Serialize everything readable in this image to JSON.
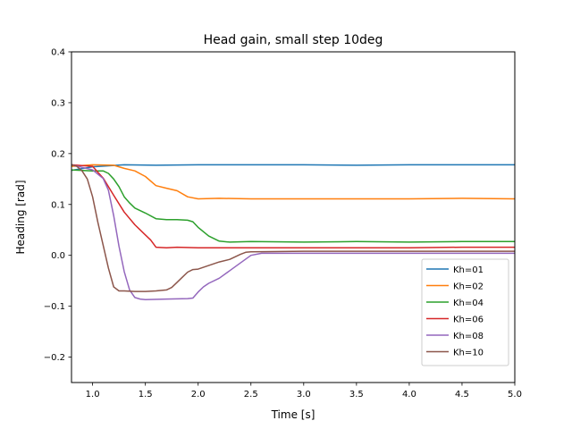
{
  "chart_data": {
    "type": "line",
    "title": "Head gain, small step 10deg",
    "xlabel": "Time [s]",
    "ylabel": "Heading [rad]",
    "xlim": [
      0.8,
      5.0
    ],
    "ylim": [
      -0.25,
      0.4
    ],
    "xticks": [
      "1.0",
      "1.5",
      "2.0",
      "2.5",
      "3.0",
      "3.5",
      "4.0",
      "4.5",
      "5.0"
    ],
    "yticks": [
      "−0.2",
      "−0.1",
      "0.0",
      "0.1",
      "0.2",
      "0.3",
      "0.4"
    ],
    "grid": false,
    "legend_position": "lower right",
    "series": [
      {
        "name": "Kh=01",
        "color": "#1f77b4",
        "x": [
          0.8,
          1.0,
          1.3,
          1.6,
          2.0,
          2.5,
          3.0,
          3.5,
          4.0,
          4.5,
          5.0
        ],
        "y": [
          0.167,
          0.174,
          0.178,
          0.177,
          0.178,
          0.178,
          0.178,
          0.177,
          0.178,
          0.178,
          0.178
        ]
      },
      {
        "name": "Kh=02",
        "color": "#ff7f0e",
        "x": [
          0.8,
          1.0,
          1.2,
          1.3,
          1.4,
          1.5,
          1.6,
          1.7,
          1.8,
          1.9,
          2.0,
          2.2,
          2.5,
          3.0,
          3.5,
          4.0,
          4.5,
          5.0
        ],
        "y": [
          0.175,
          0.178,
          0.177,
          0.171,
          0.166,
          0.155,
          0.137,
          0.132,
          0.127,
          0.115,
          0.111,
          0.112,
          0.111,
          0.111,
          0.111,
          0.111,
          0.112,
          0.111
        ]
      },
      {
        "name": "Kh=04",
        "color": "#2ca02c",
        "x": [
          0.8,
          1.0,
          1.1,
          1.15,
          1.2,
          1.25,
          1.3,
          1.35,
          1.4,
          1.5,
          1.6,
          1.7,
          1.8,
          1.9,
          1.95,
          2.0,
          2.1,
          2.2,
          2.3,
          2.5,
          3.0,
          3.5,
          4.0,
          4.5,
          5.0
        ],
        "y": [
          0.168,
          0.166,
          0.166,
          0.161,
          0.15,
          0.135,
          0.115,
          0.103,
          0.093,
          0.083,
          0.072,
          0.07,
          0.07,
          0.069,
          0.066,
          0.055,
          0.038,
          0.028,
          0.026,
          0.027,
          0.026,
          0.027,
          0.026,
          0.027,
          0.027
        ]
      },
      {
        "name": "Kh=06",
        "color": "#d62728",
        "x": [
          0.8,
          1.0,
          1.1,
          1.2,
          1.3,
          1.4,
          1.5,
          1.55,
          1.6,
          1.7,
          1.8,
          2.0,
          2.5,
          3.0,
          3.5,
          4.0,
          4.5,
          5.0
        ],
        "y": [
          0.178,
          0.175,
          0.152,
          0.118,
          0.085,
          0.06,
          0.04,
          0.03,
          0.016,
          0.015,
          0.016,
          0.015,
          0.015,
          0.015,
          0.015,
          0.015,
          0.016,
          0.016
        ]
      },
      {
        "name": "Kh=08",
        "color": "#9467bd",
        "x": [
          0.8,
          1.0,
          1.1,
          1.15,
          1.2,
          1.25,
          1.3,
          1.35,
          1.4,
          1.45,
          1.5,
          1.7,
          1.9,
          1.95,
          2.0,
          2.05,
          2.1,
          2.2,
          2.3,
          2.4,
          2.5,
          2.6,
          3.0,
          3.5,
          4.0,
          4.5,
          5.0
        ],
        "y": [
          0.178,
          0.168,
          0.151,
          0.128,
          0.078,
          0.018,
          -0.032,
          -0.068,
          -0.083,
          -0.086,
          -0.087,
          -0.086,
          -0.085,
          -0.084,
          -0.072,
          -0.062,
          -0.055,
          -0.045,
          -0.03,
          -0.015,
          0.0,
          0.004,
          0.004,
          0.004,
          0.004,
          0.004,
          0.004
        ]
      },
      {
        "name": "Kh=10",
        "color": "#8c564b",
        "x": [
          0.8,
          0.85,
          0.9,
          0.95,
          1.0,
          1.05,
          1.1,
          1.15,
          1.2,
          1.25,
          1.3,
          1.4,
          1.5,
          1.6,
          1.7,
          1.75,
          1.8,
          1.85,
          1.9,
          1.95,
          2.0,
          2.1,
          2.2,
          2.3,
          2.4,
          2.45,
          2.5,
          3.0,
          3.5,
          4.0,
          4.5,
          5.0
        ],
        "y": [
          0.178,
          0.175,
          0.166,
          0.15,
          0.115,
          0.065,
          0.02,
          -0.025,
          -0.062,
          -0.07,
          -0.07,
          -0.071,
          -0.071,
          -0.07,
          -0.068,
          -0.063,
          -0.053,
          -0.043,
          -0.033,
          -0.028,
          -0.027,
          -0.02,
          -0.013,
          -0.008,
          0.002,
          0.006,
          0.007,
          0.008,
          0.008,
          0.008,
          0.008,
          0.008
        ]
      }
    ]
  }
}
